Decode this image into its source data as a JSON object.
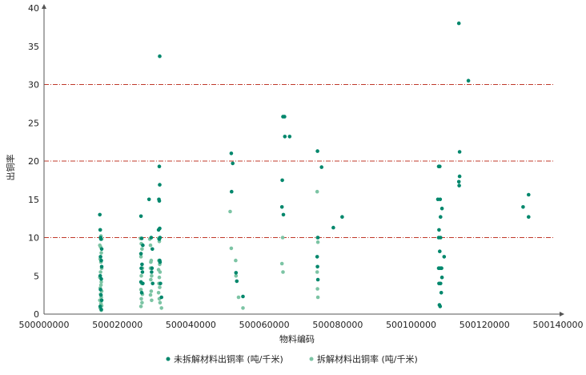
{
  "chart_data": {
    "type": "scatter",
    "xlabel": "物料编码",
    "ylabel": "出铜率",
    "xlim": [
      500000000,
      500140000
    ],
    "ylim": [
      0,
      40
    ],
    "x_ticks": [
      "500000000",
      "500020000",
      "500040000",
      "500060000",
      "500080000",
      "500100000",
      "500120000",
      "500140000"
    ],
    "y_ticks": [
      "0",
      "5",
      "10",
      "15",
      "20",
      "25",
      "30",
      "35",
      "40"
    ],
    "reference_lines": [
      10,
      20,
      30
    ],
    "grid": false,
    "legend_position": "bottom",
    "colors": {
      "series1": "#00876C",
      "series2": "#7CC4A4",
      "reference": "#C0392B",
      "axis": "#555555"
    },
    "series": [
      {
        "name": "未拆解材料出铜率 (吨/千米)",
        "points": [
          [
            500015200,
            13.0
          ],
          [
            500015300,
            11.0
          ],
          [
            500015400,
            10.0
          ],
          [
            500015500,
            9.8
          ],
          [
            500015700,
            8.5
          ],
          [
            500015400,
            7.5
          ],
          [
            500015600,
            7.0
          ],
          [
            500015700,
            6.2
          ],
          [
            500015300,
            5.0
          ],
          [
            500015600,
            4.6
          ],
          [
            500015400,
            3.2
          ],
          [
            500015500,
            2.5
          ],
          [
            500015700,
            1.8
          ],
          [
            500015300,
            1.0
          ],
          [
            500015600,
            0.6
          ],
          [
            500026400,
            12.8
          ],
          [
            500026600,
            9.9
          ],
          [
            500026900,
            9.0
          ],
          [
            500026400,
            7.9
          ],
          [
            500026700,
            6.5
          ],
          [
            500026500,
            6.0
          ],
          [
            500026800,
            5.5
          ],
          [
            500026400,
            4.2
          ],
          [
            500026900,
            4.0
          ],
          [
            500026600,
            2.8
          ],
          [
            500028600,
            15.0
          ],
          [
            500029200,
            10.0
          ],
          [
            500029500,
            8.5
          ],
          [
            500029400,
            6.0
          ],
          [
            500029300,
            5.5
          ],
          [
            500029600,
            4.0
          ],
          [
            500031500,
            33.7
          ],
          [
            500031400,
            19.3
          ],
          [
            500031500,
            16.9
          ],
          [
            500031300,
            15.0
          ],
          [
            500031400,
            14.8
          ],
          [
            500031500,
            11.2
          ],
          [
            500031200,
            11.0
          ],
          [
            500031600,
            10.0
          ],
          [
            500031400,
            9.8
          ],
          [
            500031500,
            7.0
          ],
          [
            500031600,
            6.8
          ],
          [
            500031700,
            4.0
          ],
          [
            500032000,
            2.2
          ],
          [
            500051000,
            21.0
          ],
          [
            500051400,
            19.7
          ],
          [
            500051100,
            16.0
          ],
          [
            500052300,
            5.4
          ],
          [
            500052500,
            4.3
          ],
          [
            500054200,
            2.3
          ],
          [
            500065100,
            25.8
          ],
          [
            500065500,
            25.8
          ],
          [
            500065600,
            23.2
          ],
          [
            500066900,
            23.2
          ],
          [
            500064900,
            17.5
          ],
          [
            500064800,
            14.0
          ],
          [
            500065200,
            13.0
          ],
          [
            500074500,
            21.3
          ],
          [
            500075600,
            19.2
          ],
          [
            500074600,
            10.0
          ],
          [
            500074400,
            7.5
          ],
          [
            500074500,
            6.2
          ],
          [
            500074600,
            4.5
          ],
          [
            500078800,
            11.3
          ],
          [
            500081200,
            12.7
          ],
          [
            500107500,
            19.3
          ],
          [
            500107800,
            19.3
          ],
          [
            500107300,
            15.0
          ],
          [
            500107900,
            15.0
          ],
          [
            500108400,
            13.8
          ],
          [
            500108000,
            12.7
          ],
          [
            500107600,
            11.0
          ],
          [
            500107500,
            10.0
          ],
          [
            500108000,
            10.0
          ],
          [
            500107800,
            8.2
          ],
          [
            500109000,
            7.5
          ],
          [
            500107900,
            6.0
          ],
          [
            500108300,
            6.0
          ],
          [
            500107500,
            6.0
          ],
          [
            500108400,
            4.8
          ],
          [
            500107600,
            4.0
          ],
          [
            500108000,
            4.0
          ],
          [
            500108200,
            2.8
          ],
          [
            500107700,
            1.2
          ],
          [
            500107900,
            1.0
          ],
          [
            500113000,
            38.0
          ],
          [
            500115600,
            30.5
          ],
          [
            500113200,
            21.2
          ],
          [
            500113200,
            18.0
          ],
          [
            500113000,
            17.3
          ],
          [
            500113100,
            16.8
          ],
          [
            500130500,
            14.0
          ],
          [
            500132000,
            15.6
          ],
          [
            500132000,
            12.7
          ]
        ]
      },
      {
        "name": "拆解材料出铜率 (吨/千米)",
        "points": [
          [
            500015300,
            11.0
          ],
          [
            500015500,
            10.2
          ],
          [
            500015700,
            9.8
          ],
          [
            500015200,
            9.0
          ],
          [
            500015400,
            8.8
          ],
          [
            500015600,
            8.0
          ],
          [
            500015300,
            7.2
          ],
          [
            500015500,
            6.8
          ],
          [
            500015700,
            6.0
          ],
          [
            500015400,
            5.5
          ],
          [
            500015200,
            4.8
          ],
          [
            500015600,
            4.2
          ],
          [
            500015500,
            3.8
          ],
          [
            500015300,
            3.4
          ],
          [
            500015700,
            3.0
          ],
          [
            500015400,
            2.6
          ],
          [
            500015600,
            2.2
          ],
          [
            500015200,
            1.8
          ],
          [
            500015500,
            1.4
          ],
          [
            500015700,
            1.1
          ],
          [
            500015300,
            0.8
          ],
          [
            500015600,
            0.5
          ],
          [
            500026300,
            9.9
          ],
          [
            500026500,
            9.2
          ],
          [
            500026700,
            8.5
          ],
          [
            500026400,
            7.5
          ],
          [
            500026800,
            6.0
          ],
          [
            500026500,
            5.0
          ],
          [
            500026600,
            4.0
          ],
          [
            500026400,
            3.2
          ],
          [
            500026800,
            2.6
          ],
          [
            500026500,
            2.0
          ],
          [
            500026700,
            1.5
          ],
          [
            500026400,
            1.0
          ],
          [
            500028800,
            9.8
          ],
          [
            500029000,
            9.0
          ],
          [
            500029200,
            7.0
          ],
          [
            500029100,
            6.8
          ],
          [
            500029000,
            6.0
          ],
          [
            500029300,
            5.0
          ],
          [
            500029100,
            4.5
          ],
          [
            500029200,
            3.0
          ],
          [
            500029000,
            2.5
          ],
          [
            500029300,
            1.8
          ],
          [
            500031200,
            9.9
          ],
          [
            500031400,
            9.5
          ],
          [
            500031300,
            7.0
          ],
          [
            500031500,
            6.5
          ],
          [
            500031200,
            5.8
          ],
          [
            500031600,
            5.5
          ],
          [
            500031400,
            4.8
          ],
          [
            500031300,
            4.0
          ],
          [
            500031500,
            3.5
          ],
          [
            500031200,
            2.8
          ],
          [
            500031400,
            2.0
          ],
          [
            500031600,
            1.5
          ],
          [
            500032000,
            0.8
          ],
          [
            500050700,
            13.4
          ],
          [
            500051000,
            8.6
          ],
          [
            500052200,
            7.0
          ],
          [
            500052300,
            5.0
          ],
          [
            500053000,
            2.2
          ],
          [
            500054200,
            0.8
          ],
          [
            500065000,
            10.0
          ],
          [
            500064800,
            6.6
          ],
          [
            500065100,
            5.5
          ],
          [
            500074400,
            16.0
          ],
          [
            500074500,
            10.0
          ],
          [
            500074600,
            9.4
          ],
          [
            500074400,
            5.5
          ],
          [
            500074500,
            3.3
          ],
          [
            500074600,
            2.2
          ]
        ]
      }
    ]
  }
}
